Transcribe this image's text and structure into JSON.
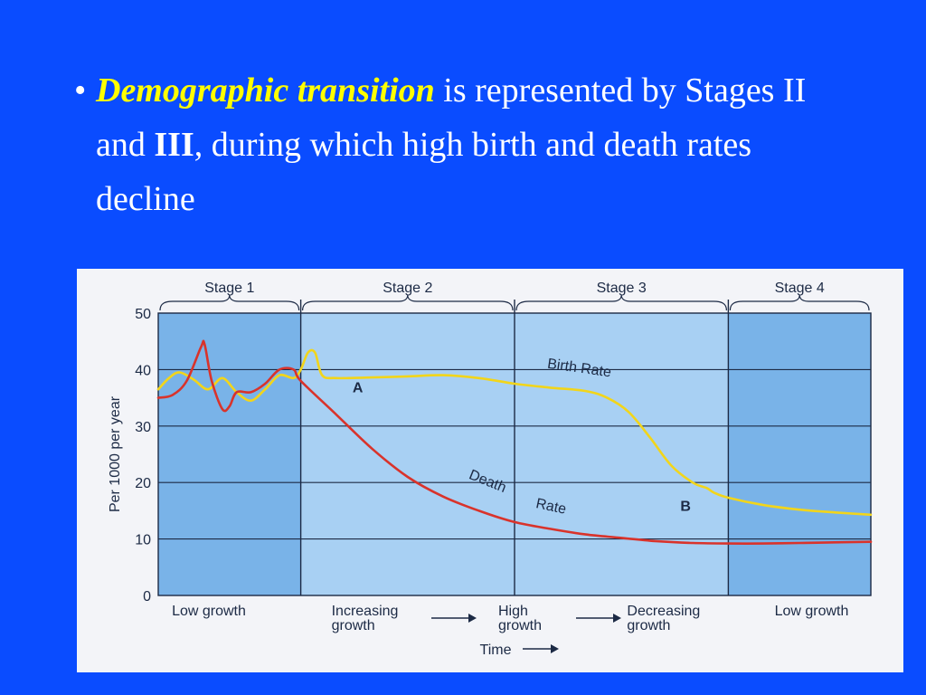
{
  "slide": {
    "bullet": "•",
    "term": "Demographic transition",
    "text_1": " is represented by Stages II and ",
    "emphasis": "III",
    "text_2": ", during which high birth and death rates decline"
  },
  "chart_data": {
    "type": "line",
    "title": "",
    "ylabel": "Per 1000 per year",
    "xlabel": "Time",
    "ylim": [
      0,
      50
    ],
    "yticks": [
      0,
      10,
      20,
      30,
      40,
      50
    ],
    "grid": true,
    "stages": [
      {
        "name": "Stage 1",
        "start": 0,
        "end": 20,
        "caption": [
          "Low growth"
        ],
        "shade": "#79b3e8"
      },
      {
        "name": "Stage 2",
        "start": 20,
        "end": 50,
        "caption": [
          "Increasing",
          "growth"
        ],
        "shade": "#a8d0f3"
      },
      {
        "name": "Stage 3",
        "start": 50,
        "end": 80,
        "caption": [
          "High",
          "growth"
        ],
        "shade": "#a8d0f3"
      },
      {
        "name": "Stage 4",
        "start": 80,
        "end": 100,
        "caption": [
          "Decreasing",
          "growth"
        ],
        "shade": "#79b3e8"
      }
    ],
    "end_caption": [
      "Low growth"
    ],
    "series": [
      {
        "name": "Birth Rate",
        "color": "#f2d51a",
        "x": [
          0,
          1.5,
          3,
          5,
          7,
          9,
          11,
          13,
          15,
          17,
          19,
          20,
          21,
          22,
          23,
          25,
          30,
          35,
          40,
          45,
          50,
          55,
          60,
          63,
          66,
          69,
          72,
          75,
          77,
          78,
          80,
          85,
          90,
          95,
          100
        ],
        "values": [
          36.5,
          38.5,
          39.5,
          38.2,
          36.5,
          38.5,
          36.0,
          34.5,
          36.5,
          39.0,
          38.5,
          40.0,
          43.0,
          43.0,
          39.0,
          38.5,
          38.6,
          38.8,
          39.0,
          38.5,
          37.5,
          36.8,
          36.2,
          35.0,
          32.5,
          28.0,
          23.0,
          20.0,
          19.0,
          18.2,
          17.3,
          16.0,
          15.2,
          14.7,
          14.3
        ]
      },
      {
        "name": "Death Rate",
        "color": "#d9332b",
        "x": [
          0,
          2,
          4,
          6,
          6.5,
          7.5,
          9,
          10,
          11,
          13,
          15,
          17,
          19,
          20,
          25,
          30,
          35,
          40,
          45,
          50,
          55,
          60,
          65,
          70,
          75,
          80,
          85,
          90,
          95,
          100
        ],
        "values": [
          35,
          35.5,
          38,
          44,
          44.5,
          38,
          33,
          33.5,
          36,
          36,
          37.5,
          40,
          40,
          38,
          32,
          26,
          21,
          17.5,
          15,
          13,
          11.8,
          10.8,
          10.2,
          9.6,
          9.3,
          9.2,
          9.2,
          9.3,
          9.4,
          9.5
        ]
      }
    ],
    "series_labels": [
      {
        "text": "Birth Rate",
        "x": 59,
        "y": 39.5,
        "angle": 8
      },
      {
        "text": "Death",
        "x": 46,
        "y": 19.5,
        "angle": 22
      },
      {
        "text": "Rate",
        "x": 55,
        "y": 15.0,
        "angle": 12
      }
    ],
    "annotations": [
      {
        "text": "A",
        "x": 28,
        "y": 36
      },
      {
        "text": "B",
        "x": 74,
        "y": 15
      }
    ]
  }
}
